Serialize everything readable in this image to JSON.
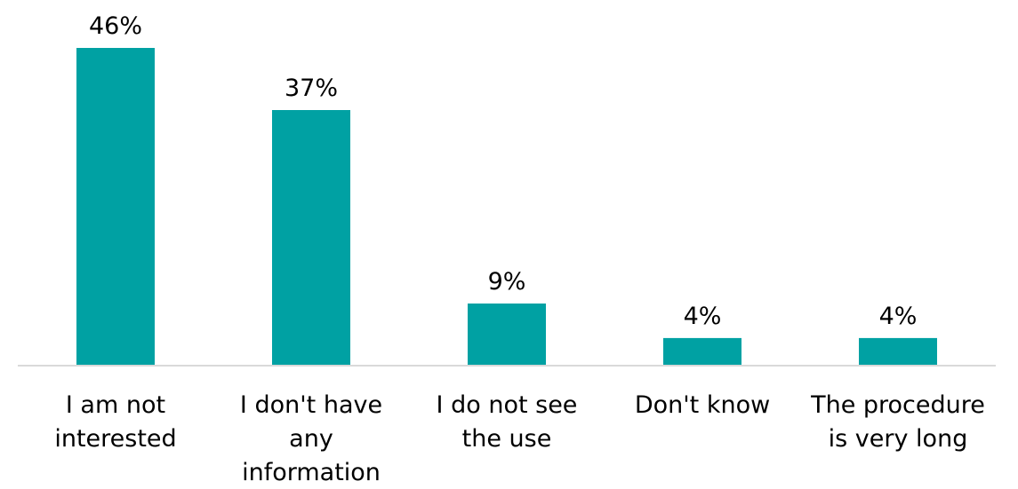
{
  "chart_data": {
    "type": "bar",
    "categories": [
      [
        "I am not",
        "interested"
      ],
      [
        "I don't have",
        "any",
        "information"
      ],
      [
        "I do not see",
        "the use"
      ],
      [
        "Don't know"
      ],
      [
        "The procedure",
        "is very long"
      ]
    ],
    "values": [
      46,
      37,
      9,
      4,
      4
    ],
    "value_labels": [
      "46%",
      "37%",
      "9%",
      "4%",
      "4%"
    ],
    "value_unit": "%",
    "title": "",
    "xlabel": "",
    "ylabel": "",
    "ylim": [
      0,
      46
    ],
    "grid": false,
    "legend": "none",
    "colors": {
      "bar": "#00A1A3",
      "axis": "#D9D9D9",
      "text": "#000000"
    }
  }
}
